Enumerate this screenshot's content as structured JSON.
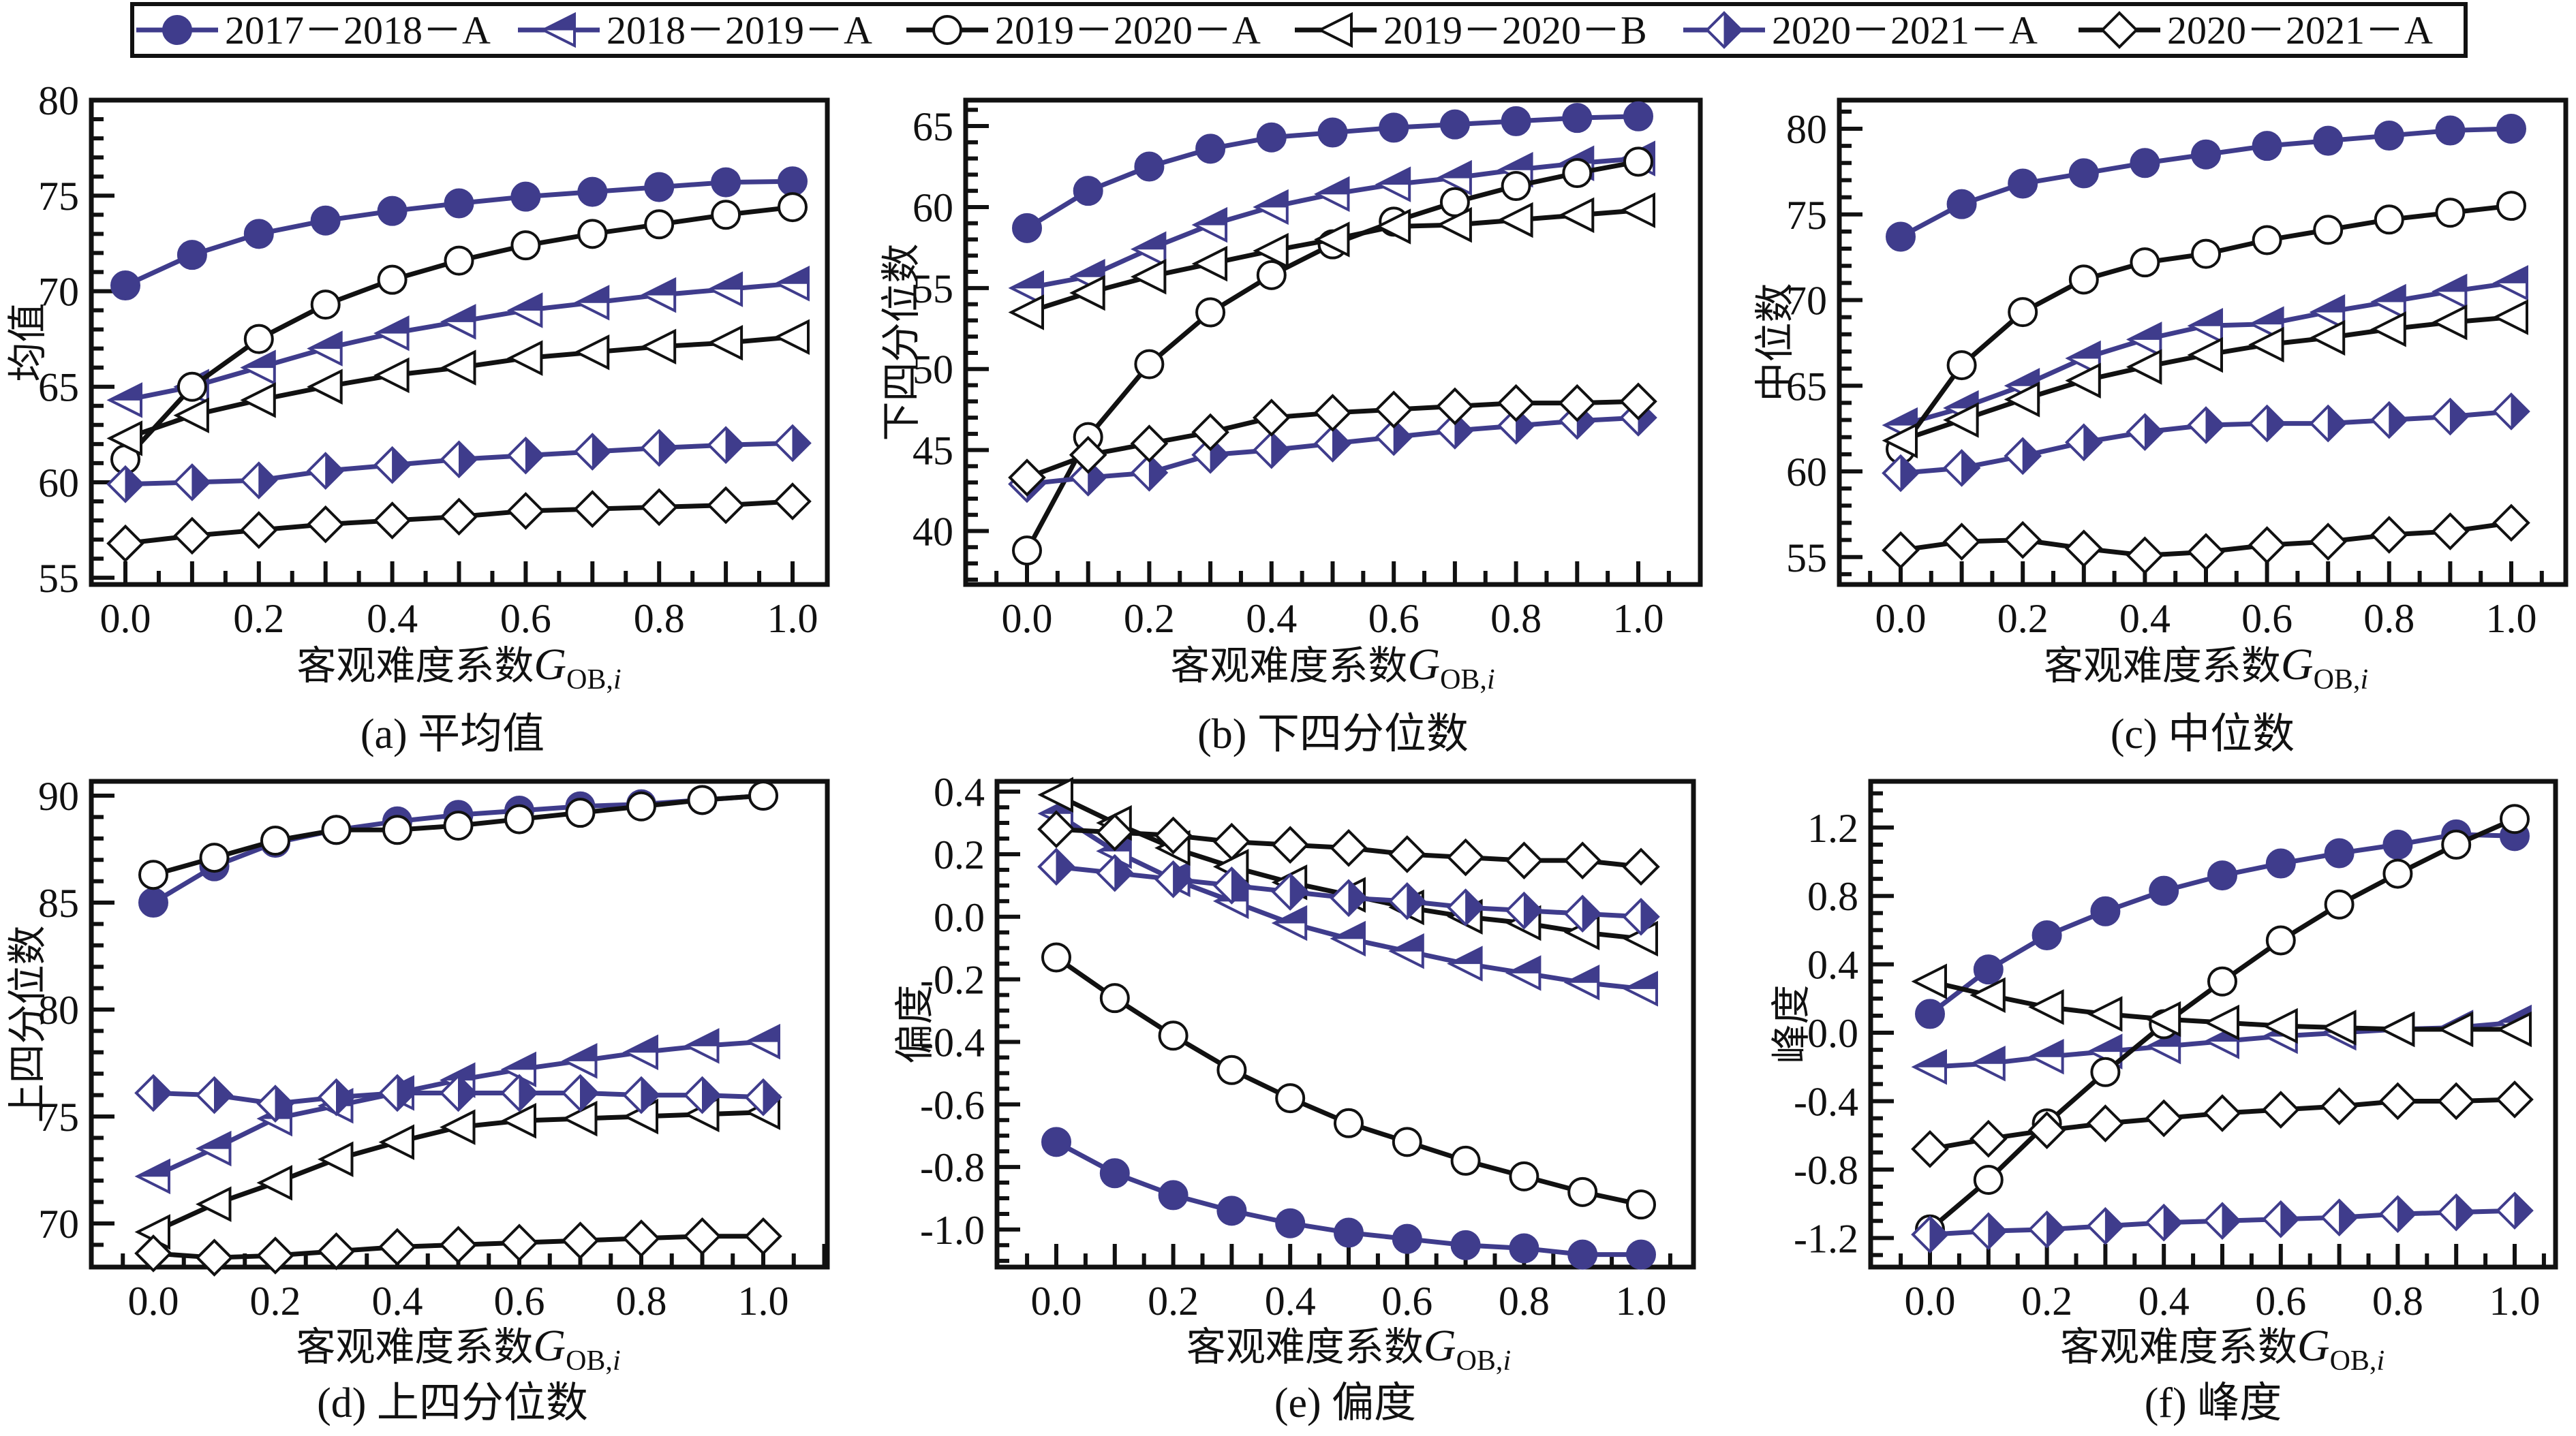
{
  "legend": {
    "entries": [
      {
        "label": "2017－2018－A",
        "marker": "circle-filled",
        "color": "#3f3c8c"
      },
      {
        "label": "2018－2019－A",
        "marker": "triangle-left-half",
        "color": "#3f3c8c"
      },
      {
        "label": "2019－2020－A",
        "marker": "circle-open",
        "color": "#111111"
      },
      {
        "label": "2019－2020－B",
        "marker": "triangle-left-open",
        "color": "#111111"
      },
      {
        "label": "2020－2021－A",
        "marker": "diamond-half",
        "color": "#3f3c8c"
      },
      {
        "label": "2020－2021－A",
        "marker": "diamond-open",
        "color": "#111111"
      }
    ]
  },
  "chart_data": [
    {
      "type": "line",
      "panel": "a",
      "caption": "(a) 平均值",
      "xlabel": "客观难度系数",
      "xlabel_symbol": "G",
      "xlabel_subscript": "OB,",
      "xlabel_subscript_italic": "i",
      "ylabel": "均值",
      "x": [
        0.0,
        0.1,
        0.2,
        0.3,
        0.4,
        0.5,
        0.6,
        0.7,
        0.8,
        0.9,
        1.0
      ],
      "xticks": [
        "0.0",
        "0.2",
        "0.4",
        "0.6",
        "0.8",
        "1.0"
      ],
      "yticks": [
        "55",
        "60",
        "65",
        "70",
        "75",
        "80"
      ],
      "ylim": [
        54.65,
        80.0
      ],
      "series": [
        {
          "name": "2017－2018－A",
          "values": [
            70.3,
            71.9,
            73.0,
            73.7,
            74.2,
            74.6,
            74.95,
            75.2,
            75.45,
            75.7,
            75.75
          ]
        },
        {
          "name": "2018－2019－A",
          "values": [
            64.3,
            65.0,
            66.0,
            67.0,
            67.8,
            68.4,
            69.0,
            69.4,
            69.8,
            70.1,
            70.4
          ]
        },
        {
          "name": "2019－2020－A",
          "values": [
            61.2,
            65.0,
            67.5,
            69.3,
            70.6,
            71.6,
            72.4,
            73.0,
            73.5,
            74.0,
            74.4
          ]
        },
        {
          "name": "2019－2020－B",
          "values": [
            62.3,
            63.5,
            64.3,
            65.0,
            65.6,
            66.0,
            66.5,
            66.8,
            67.1,
            67.3,
            67.6
          ]
        },
        {
          "name": "2020－2021－A",
          "values": [
            59.9,
            60.0,
            60.1,
            60.6,
            60.9,
            61.2,
            61.4,
            61.6,
            61.8,
            61.95,
            62.05
          ]
        },
        {
          "name": "2020－2021－A (open)",
          "values": [
            56.8,
            57.2,
            57.5,
            57.8,
            58.0,
            58.2,
            58.5,
            58.6,
            58.7,
            58.8,
            59.0
          ]
        }
      ]
    },
    {
      "type": "line",
      "panel": "b",
      "caption": "(b) 下四分位数",
      "xlabel": "客观难度系数",
      "xlabel_symbol": "G",
      "xlabel_subscript": "OB,",
      "xlabel_subscript_italic": "i",
      "ylabel": "下四分位数",
      "x": [
        0.0,
        0.1,
        0.2,
        0.3,
        0.4,
        0.5,
        0.6,
        0.7,
        0.8,
        0.9,
        1.0
      ],
      "xticks": [
        "0.0",
        "0.2",
        "0.4",
        "0.6",
        "0.8",
        "1.0"
      ],
      "yticks": [
        "40",
        "45",
        "50",
        "55",
        "60",
        "65"
      ],
      "ylim": [
        36.7,
        66.6
      ],
      "series": [
        {
          "name": "2017－2018－A",
          "values": [
            58.7,
            61.0,
            62.5,
            63.6,
            64.3,
            64.6,
            64.9,
            65.1,
            65.3,
            65.5,
            65.6
          ]
        },
        {
          "name": "2018－2019－A",
          "values": [
            55.0,
            55.7,
            57.4,
            58.9,
            60.0,
            60.8,
            61.4,
            61.8,
            62.3,
            62.7,
            63.0
          ]
        },
        {
          "name": "2019－2020－A",
          "values": [
            38.8,
            45.8,
            50.3,
            53.5,
            55.8,
            57.7,
            59.1,
            60.3,
            61.3,
            62.1,
            62.8
          ]
        },
        {
          "name": "2019－2020－B",
          "values": [
            53.5,
            54.7,
            55.7,
            56.5,
            57.3,
            58.0,
            58.8,
            58.9,
            59.2,
            59.5,
            59.8
          ]
        },
        {
          "name": "2020－2021－A",
          "values": [
            42.9,
            43.3,
            43.6,
            44.7,
            45.0,
            45.4,
            45.8,
            46.2,
            46.5,
            46.8,
            47.0
          ]
        },
        {
          "name": "2020－2021－A (open)",
          "values": [
            43.3,
            44.7,
            45.4,
            46.1,
            47.0,
            47.3,
            47.5,
            47.7,
            47.9,
            47.9,
            48.0
          ]
        }
      ]
    },
    {
      "type": "line",
      "panel": "c",
      "caption": "(c) 中位数",
      "xlabel": "客观难度系数",
      "xlabel_symbol": "G",
      "xlabel_subscript": "OB,",
      "xlabel_subscript_italic": "i",
      "ylabel": "中位数",
      "x": [
        0.0,
        0.1,
        0.2,
        0.3,
        0.4,
        0.5,
        0.6,
        0.7,
        0.8,
        0.9,
        1.0
      ],
      "xticks": [
        "0.0",
        "0.2",
        "0.4",
        "0.6",
        "0.8",
        "1.0"
      ],
      "yticks": [
        "55",
        "60",
        "65",
        "70",
        "75",
        "80"
      ],
      "ylim": [
        53.4,
        81.67
      ],
      "series": [
        {
          "name": "2017－2018－A",
          "values": [
            73.7,
            75.6,
            76.8,
            77.4,
            78.0,
            78.5,
            79.0,
            79.3,
            79.6,
            79.9,
            80.0
          ]
        },
        {
          "name": "2018－2019－A",
          "values": [
            62.7,
            63.7,
            65.0,
            66.6,
            67.7,
            68.5,
            68.6,
            69.3,
            69.9,
            70.5,
            71.0
          ]
        },
        {
          "name": "2019－2020－A",
          "values": [
            61.3,
            66.2,
            69.3,
            71.2,
            72.2,
            72.7,
            73.5,
            74.1,
            74.7,
            75.1,
            75.5
          ]
        },
        {
          "name": "2019－2020－B",
          "values": [
            61.8,
            63.0,
            64.2,
            65.3,
            66.1,
            66.8,
            67.4,
            67.8,
            68.3,
            68.7,
            69.0
          ]
        },
        {
          "name": "2020－2021－A",
          "values": [
            59.9,
            60.2,
            60.9,
            61.7,
            62.3,
            62.7,
            62.8,
            62.8,
            63.0,
            63.2,
            63.5
          ]
        },
        {
          "name": "2020－2021－A (open)",
          "values": [
            55.4,
            55.9,
            56.0,
            55.5,
            55.1,
            55.3,
            55.7,
            55.9,
            56.3,
            56.5,
            57.0
          ]
        }
      ]
    },
    {
      "type": "line",
      "panel": "d",
      "caption": "(d) 上四分位数",
      "xlabel": "客观难度系数",
      "xlabel_symbol": "G",
      "xlabel_subscript": "OB,",
      "xlabel_subscript_italic": "i",
      "ylabel": "上四分位数",
      "x": [
        0.0,
        0.1,
        0.2,
        0.3,
        0.4,
        0.5,
        0.6,
        0.7,
        0.8,
        0.9,
        1.0
      ],
      "xticks": [
        "0.0",
        "0.2",
        "0.4",
        "0.6",
        "0.8",
        "1.0"
      ],
      "yticks": [
        "70",
        "75",
        "80",
        "85",
        "90"
      ],
      "ylim": [
        67.96,
        90.67
      ],
      "series": [
        {
          "name": "2017－2018－A",
          "values": [
            85.0,
            86.7,
            87.8,
            88.4,
            88.8,
            89.1,
            89.3,
            89.5,
            89.6,
            89.8,
            90.0
          ]
        },
        {
          "name": "2018－2019－A",
          "values": [
            72.2,
            73.5,
            74.9,
            75.5,
            76.1,
            76.7,
            77.2,
            77.6,
            78.0,
            78.3,
            78.5
          ]
        },
        {
          "name": "2019－2020－A",
          "values": [
            86.3,
            87.1,
            87.9,
            88.4,
            88.4,
            88.6,
            88.9,
            89.2,
            89.5,
            89.8,
            90.0
          ]
        },
        {
          "name": "2019－2020－B",
          "values": [
            69.6,
            70.9,
            71.9,
            73.0,
            73.8,
            74.5,
            74.8,
            74.9,
            75.0,
            75.1,
            75.2
          ]
        },
        {
          "name": "2020－2021－A",
          "values": [
            76.1,
            76.0,
            75.6,
            75.9,
            76.1,
            76.1,
            76.1,
            76.1,
            76.0,
            76.0,
            75.9
          ]
        },
        {
          "name": "2020－2021－A (open)",
          "values": [
            68.6,
            68.4,
            68.5,
            68.7,
            68.9,
            69.0,
            69.1,
            69.2,
            69.3,
            69.4,
            69.4
          ]
        }
      ]
    },
    {
      "type": "line",
      "panel": "e",
      "caption": "(e) 偏度",
      "xlabel": "客观难度系数",
      "xlabel_symbol": "G",
      "xlabel_subscript": "OB,",
      "xlabel_subscript_italic": "i",
      "ylabel": "偏度",
      "x": [
        0.0,
        0.1,
        0.2,
        0.3,
        0.4,
        0.5,
        0.6,
        0.7,
        0.8,
        0.9,
        1.0
      ],
      "xticks": [
        "0.0",
        "0.2",
        "0.4",
        "0.6",
        "0.8",
        "1.0"
      ],
      "yticks": [
        "-1.0",
        "-0.8",
        "-0.6",
        "-0.4",
        "-0.2",
        "0.0",
        "0.2",
        "0.4"
      ],
      "ylim": [
        -1.12,
        0.433
      ],
      "series": [
        {
          "name": "2017－2018－A",
          "values": [
            -0.72,
            -0.82,
            -0.89,
            -0.94,
            -0.98,
            -1.01,
            -1.03,
            -1.05,
            -1.06,
            -1.08,
            -1.08
          ]
        },
        {
          "name": "2018－2019－A",
          "values": [
            0.33,
            0.21,
            0.12,
            0.05,
            -0.02,
            -0.07,
            -0.11,
            -0.15,
            -0.18,
            -0.21,
            -0.23
          ]
        },
        {
          "name": "2019－2020－A",
          "values": [
            -0.13,
            -0.26,
            -0.38,
            -0.49,
            -0.58,
            -0.66,
            -0.72,
            -0.78,
            -0.83,
            -0.88,
            -0.92
          ]
        },
        {
          "name": "2019－2020－B",
          "values": [
            0.39,
            0.3,
            0.22,
            0.16,
            0.11,
            0.07,
            0.03,
            0.0,
            -0.02,
            -0.05,
            -0.07
          ]
        },
        {
          "name": "2020－2021－A",
          "values": [
            0.16,
            0.14,
            0.12,
            0.1,
            0.08,
            0.06,
            0.05,
            0.03,
            0.02,
            0.01,
            0.0
          ]
        },
        {
          "name": "2020－2021－A (open)",
          "values": [
            0.28,
            0.27,
            0.26,
            0.24,
            0.23,
            0.22,
            0.2,
            0.19,
            0.18,
            0.18,
            0.16
          ]
        }
      ]
    },
    {
      "type": "line",
      "panel": "f",
      "caption": "(f) 峰度",
      "xlabel": "客观难度系数",
      "xlabel_symbol": "G",
      "xlabel_subscript": "OB,",
      "xlabel_subscript_italic": "i",
      "ylabel": "峰度",
      "x": [
        0.0,
        0.1,
        0.2,
        0.3,
        0.4,
        0.5,
        0.6,
        0.7,
        0.8,
        0.9,
        1.0
      ],
      "xticks": [
        "0.0",
        "0.2",
        "0.4",
        "0.6",
        "0.8",
        "1.0"
      ],
      "yticks": [
        "-1.2",
        "-0.8",
        "-0.4",
        "0.0",
        "0.4",
        "0.8",
        "1.2"
      ],
      "ylim": [
        -1.37,
        1.47
      ],
      "series": [
        {
          "name": "2017－2018－A",
          "values": [
            0.11,
            0.37,
            0.57,
            0.71,
            0.83,
            0.92,
            0.99,
            1.05,
            1.1,
            1.16,
            1.15
          ]
        },
        {
          "name": "2018－2019－A",
          "values": [
            -0.2,
            -0.18,
            -0.14,
            -0.11,
            -0.08,
            -0.05,
            -0.02,
            0.0,
            0.02,
            0.03,
            0.06
          ]
        },
        {
          "name": "2019－2020－A",
          "values": [
            -1.15,
            -0.86,
            -0.53,
            -0.23,
            0.05,
            0.3,
            0.54,
            0.75,
            0.93,
            1.1,
            1.25
          ]
        },
        {
          "name": "2019－2020－B",
          "values": [
            0.3,
            0.22,
            0.15,
            0.11,
            0.08,
            0.06,
            0.04,
            0.03,
            0.02,
            0.02,
            0.02
          ]
        },
        {
          "name": "2020－2021－A",
          "values": [
            -1.18,
            -1.16,
            -1.15,
            -1.13,
            -1.11,
            -1.1,
            -1.09,
            -1.08,
            -1.06,
            -1.05,
            -1.04
          ]
        },
        {
          "name": "2020－2021－A (open)",
          "values": [
            -0.68,
            -0.62,
            -0.57,
            -0.53,
            -0.5,
            -0.47,
            -0.45,
            -0.43,
            -0.4,
            -0.4,
            -0.39
          ]
        }
      ]
    }
  ]
}
